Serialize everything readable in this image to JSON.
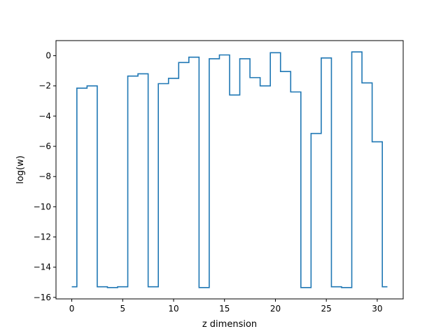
{
  "chart_data": {
    "type": "line",
    "drawstyle": "steps-mid",
    "title": "",
    "xlabel": "z dimension",
    "ylabel": "log(w)",
    "xlim": [
      -1.55,
      32.55
    ],
    "ylim": [
      -16.1,
      1.0
    ],
    "xticks": [
      0,
      5,
      10,
      15,
      20,
      25,
      30
    ],
    "yticks": [
      -16,
      -14,
      -12,
      -10,
      -8,
      -6,
      -4,
      -2,
      0
    ],
    "grid": false,
    "legend": "none",
    "series": [
      {
        "color": "#1f77b4",
        "x": [
          0,
          1,
          2,
          3,
          4,
          5,
          6,
          7,
          8,
          9,
          10,
          11,
          12,
          13,
          14,
          15,
          16,
          17,
          18,
          19,
          20,
          21,
          22,
          23,
          24,
          25,
          26,
          27,
          28,
          29,
          30,
          31
        ],
        "y": [
          -15.3,
          -2.15,
          -2.0,
          -15.3,
          -15.35,
          -15.3,
          -1.35,
          -1.2,
          -15.3,
          -1.85,
          -1.5,
          -0.45,
          -0.1,
          -15.35,
          -0.2,
          0.05,
          -2.6,
          -0.2,
          -1.45,
          -2.0,
          0.2,
          -1.05,
          -2.4,
          -15.35,
          -5.15,
          -0.15,
          -15.3,
          -15.35,
          0.25,
          -1.8,
          -5.7,
          -15.3
        ]
      }
    ]
  }
}
